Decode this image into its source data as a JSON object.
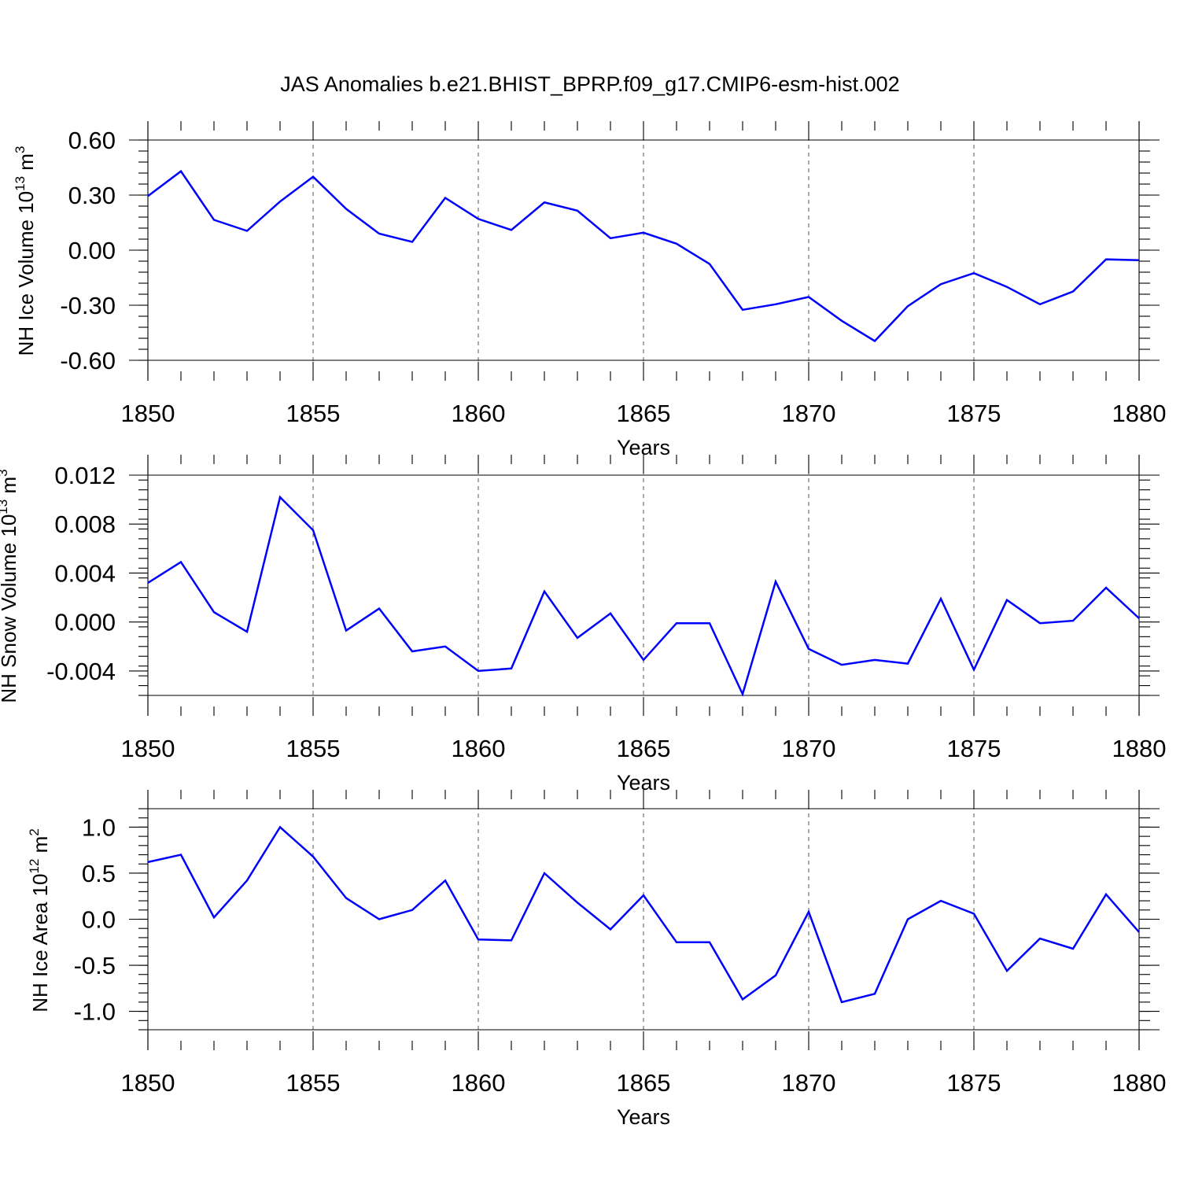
{
  "title": "JAS Anomalies b.e21.BHIST_BPRP.f09_g17.CMIP6-esm-hist.002",
  "colors": {
    "line": "#0000ff",
    "axis": "#000000",
    "grid": "#555555"
  },
  "chart_data": [
    {
      "type": "line",
      "xlabel": "Years",
      "ylabel": {
        "text": "NH Ice Volume 10",
        "sup": "13",
        "unit": " m",
        "unit_sup": "3"
      },
      "xlim": [
        1850,
        1880
      ],
      "ylim": [
        -0.6,
        0.6
      ],
      "yticks": [
        0.6,
        0.3,
        0.0,
        -0.3,
        -0.6
      ],
      "ytick_labels": [
        "0.60",
        "0.30",
        "0.00",
        "-0.30",
        "-0.60"
      ],
      "xticks": [
        1850,
        1855,
        1860,
        1865,
        1870,
        1875,
        1880
      ],
      "xtick_labels": [
        "1850",
        "1855",
        "1860",
        "1865",
        "1870",
        "1875",
        "1880"
      ],
      "x": [
        1850,
        1851,
        1852,
        1853,
        1854,
        1855,
        1856,
        1857,
        1858,
        1859,
        1860,
        1861,
        1862,
        1863,
        1864,
        1865,
        1866,
        1867,
        1868,
        1869,
        1870,
        1871,
        1872,
        1873,
        1874,
        1875,
        1876,
        1877,
        1878,
        1879,
        1880
      ],
      "values": [
        0.295,
        0.43,
        0.165,
        0.105,
        0.265,
        0.4,
        0.225,
        0.09,
        0.045,
        0.285,
        0.17,
        0.11,
        0.26,
        0.215,
        0.065,
        0.095,
        0.035,
        -0.075,
        -0.325,
        -0.295,
        -0.255,
        -0.385,
        -0.495,
        -0.305,
        -0.185,
        -0.125,
        -0.2,
        -0.295,
        -0.225,
        -0.05,
        -0.055
      ]
    },
    {
      "type": "line",
      "xlabel": "Years",
      "ylabel": {
        "text": "NH Snow Volume 10",
        "sup": "13",
        "unit": " m",
        "unit_sup": "3"
      },
      "xlim": [
        1850,
        1880
      ],
      "ylim": [
        -0.006,
        0.012
      ],
      "yticks": [
        0.012,
        0.008,
        0.004,
        0.0,
        -0.004
      ],
      "ytick_labels": [
        "0.012",
        "0.008",
        "0.004",
        "0.000",
        "-0.004"
      ],
      "xticks": [
        1850,
        1855,
        1860,
        1865,
        1870,
        1875,
        1880
      ],
      "xtick_labels": [
        "1850",
        "1855",
        "1860",
        "1865",
        "1870",
        "1875",
        "1880"
      ],
      "x": [
        1850,
        1851,
        1852,
        1853,
        1854,
        1855,
        1856,
        1857,
        1858,
        1859,
        1860,
        1861,
        1862,
        1863,
        1864,
        1865,
        1866,
        1867,
        1868,
        1869,
        1870,
        1871,
        1872,
        1873,
        1874,
        1875,
        1876,
        1877,
        1878,
        1879,
        1880
      ],
      "values": [
        0.0032,
        0.0049,
        0.0008,
        -0.0008,
        0.0102,
        0.0075,
        -0.0007,
        0.0011,
        -0.0024,
        -0.002,
        -0.004,
        -0.0038,
        0.0025,
        -0.0013,
        0.0007,
        -0.0031,
        -0.0001,
        -0.0001,
        -0.0059,
        0.0033,
        -0.0022,
        -0.0035,
        -0.0031,
        -0.0034,
        0.0019,
        -0.0039,
        0.0018,
        -0.0001,
        0.0001,
        0.0028,
        0.0003
      ]
    },
    {
      "type": "line",
      "xlabel": "Years",
      "ylabel": {
        "text": "NH Ice Area 10",
        "sup": "12",
        "unit": " m",
        "unit_sup": "2"
      },
      "xlim": [
        1850,
        1880
      ],
      "ylim": [
        -1.2,
        1.2
      ],
      "yticks": [
        1.0,
        0.5,
        0.0,
        -0.5,
        -1.0
      ],
      "ytick_labels": [
        "1.0",
        "0.5",
        "0.0",
        "-0.5",
        "-1.0"
      ],
      "xticks": [
        1850,
        1855,
        1860,
        1865,
        1870,
        1875,
        1880
      ],
      "xtick_labels": [
        "1850",
        "1855",
        "1860",
        "1865",
        "1870",
        "1875",
        "1880"
      ],
      "x": [
        1850,
        1851,
        1852,
        1853,
        1854,
        1855,
        1856,
        1857,
        1858,
        1859,
        1860,
        1861,
        1862,
        1863,
        1864,
        1865,
        1866,
        1867,
        1868,
        1869,
        1870,
        1871,
        1872,
        1873,
        1874,
        1875,
        1876,
        1877,
        1878,
        1879,
        1880
      ],
      "values": [
        0.62,
        0.7,
        0.02,
        0.42,
        1.0,
        0.68,
        0.23,
        0.0,
        0.1,
        0.42,
        -0.22,
        -0.23,
        0.5,
        0.18,
        -0.11,
        0.26,
        -0.25,
        -0.25,
        -0.87,
        -0.61,
        0.08,
        -0.9,
        -0.81,
        0.0,
        0.2,
        0.06,
        -0.56,
        -0.21,
        -0.32,
        0.27,
        -0.14
      ]
    }
  ]
}
